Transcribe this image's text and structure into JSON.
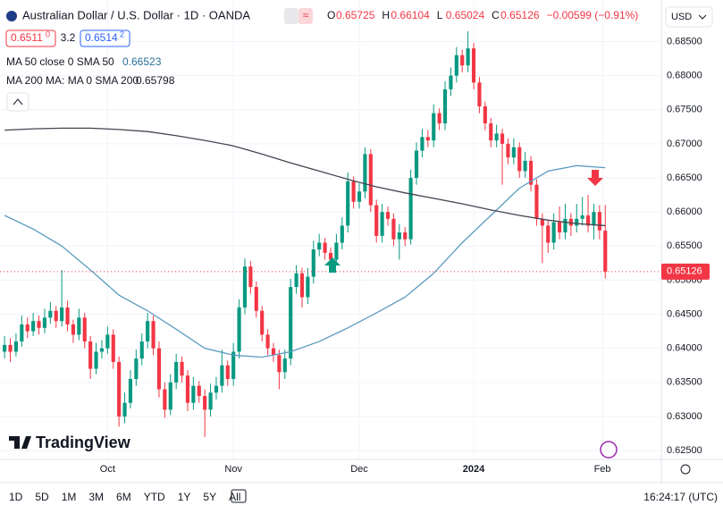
{
  "header": {
    "title": "Australian Dollar / U.S. Dollar · 1D · OANDA",
    "ohlc": [
      {
        "label": "O",
        "value": "0.65725"
      },
      {
        "label": "H",
        "value": "0.66104"
      },
      {
        "label": "L",
        "value": "0.65024"
      },
      {
        "label": "C",
        "value": "0.65126"
      }
    ],
    "change": "−0.00599 (−0.91%)",
    "bid": "0.6511",
    "bid_sup": "0",
    "spread": "3.2",
    "ask": "0.6514",
    "ask_sup": "2",
    "currency": "USD"
  },
  "indicators": [
    {
      "label": "MA 50 close 0 SMA 50",
      "value": "0.66523"
    },
    {
      "label": "MA 200 MA: MA 0 SMA 200",
      "value": "0.65798"
    }
  ],
  "logo": "TradingView",
  "toolbar": {
    "ranges": [
      "1D",
      "5D",
      "1M",
      "3M",
      "6M",
      "YTD",
      "1Y",
      "5Y",
      "All"
    ],
    "time": "16:24:17 (UTC)"
  },
  "chart_data": {
    "type": "candlestick",
    "up_color": "#089981",
    "down_color": "#f23645",
    "ohlc": [
      [
        0.6395,
        0.6418,
        0.6385,
        0.6405
      ],
      [
        0.6405,
        0.6415,
        0.638,
        0.6395
      ],
      [
        0.6395,
        0.6422,
        0.6388,
        0.641
      ],
      [
        0.641,
        0.6448,
        0.6402,
        0.6435
      ],
      [
        0.6435,
        0.6445,
        0.6415,
        0.6425
      ],
      [
        0.6425,
        0.6452,
        0.6418,
        0.644
      ],
      [
        0.644,
        0.6448,
        0.642,
        0.643
      ],
      [
        0.643,
        0.6458,
        0.6422,
        0.6445
      ],
      [
        0.6445,
        0.6468,
        0.6436,
        0.6455
      ],
      [
        0.6455,
        0.6462,
        0.643,
        0.644
      ],
      [
        0.644,
        0.6515,
        0.6432,
        0.646
      ],
      [
        0.646,
        0.647,
        0.6425,
        0.6435
      ],
      [
        0.6435,
        0.6442,
        0.6408,
        0.642
      ],
      [
        0.642,
        0.6458,
        0.6412,
        0.6445
      ],
      [
        0.6445,
        0.6452,
        0.64,
        0.641
      ],
      [
        0.641,
        0.6418,
        0.6355,
        0.637
      ],
      [
        0.637,
        0.6408,
        0.6362,
        0.6395
      ],
      [
        0.6395,
        0.6412,
        0.6385,
        0.64
      ],
      [
        0.64,
        0.6432,
        0.6392,
        0.642
      ],
      [
        0.642,
        0.6428,
        0.637,
        0.638
      ],
      [
        0.638,
        0.6388,
        0.6285,
        0.63
      ],
      [
        0.63,
        0.6335,
        0.629,
        0.632
      ],
      [
        0.632,
        0.6368,
        0.6312,
        0.6355
      ],
      [
        0.6355,
        0.6398,
        0.6345,
        0.6385
      ],
      [
        0.6385,
        0.6422,
        0.6375,
        0.641
      ],
      [
        0.641,
        0.6452,
        0.64,
        0.644
      ],
      [
        0.644,
        0.6448,
        0.639,
        0.64
      ],
      [
        0.64,
        0.641,
        0.6328,
        0.634
      ],
      [
        0.634,
        0.635,
        0.6298,
        0.631
      ],
      [
        0.631,
        0.6362,
        0.6302,
        0.635
      ],
      [
        0.635,
        0.6392,
        0.634,
        0.638
      ],
      [
        0.638,
        0.6388,
        0.635,
        0.636
      ],
      [
        0.636,
        0.6368,
        0.6308,
        0.632
      ],
      [
        0.632,
        0.6358,
        0.631,
        0.6345
      ],
      [
        0.6345,
        0.6352,
        0.632,
        0.633
      ],
      [
        0.633,
        0.634,
        0.627,
        0.631
      ],
      [
        0.631,
        0.6348,
        0.63,
        0.6335
      ],
      [
        0.6335,
        0.6358,
        0.6325,
        0.6345
      ],
      [
        0.6345,
        0.6398,
        0.6335,
        0.6375
      ],
      [
        0.6375,
        0.6382,
        0.6345,
        0.6355
      ],
      [
        0.6355,
        0.6408,
        0.6345,
        0.6395
      ],
      [
        0.6395,
        0.6472,
        0.6385,
        0.646
      ],
      [
        0.646,
        0.6532,
        0.645,
        0.652
      ],
      [
        0.652,
        0.6528,
        0.648,
        0.649
      ],
      [
        0.649,
        0.6498,
        0.6445,
        0.6455
      ],
      [
        0.6455,
        0.6462,
        0.641,
        0.642
      ],
      [
        0.642,
        0.6428,
        0.639,
        0.64
      ],
      [
        0.64,
        0.6408,
        0.638,
        0.639
      ],
      [
        0.639,
        0.6398,
        0.634,
        0.6365
      ],
      [
        0.6365,
        0.6398,
        0.6355,
        0.6385
      ],
      [
        0.6385,
        0.6502,
        0.6375,
        0.649
      ],
      [
        0.649,
        0.6522,
        0.648,
        0.651
      ],
      [
        0.651,
        0.6518,
        0.646,
        0.6475
      ],
      [
        0.6475,
        0.6518,
        0.6465,
        0.6505
      ],
      [
        0.6505,
        0.6558,
        0.6495,
        0.6545
      ],
      [
        0.6545,
        0.6568,
        0.6535,
        0.6555
      ],
      [
        0.6555,
        0.6562,
        0.653,
        0.654
      ],
      [
        0.654,
        0.6548,
        0.652,
        0.653
      ],
      [
        0.653,
        0.6568,
        0.6522,
        0.6555
      ],
      [
        0.6555,
        0.6592,
        0.6545,
        0.658
      ],
      [
        0.658,
        0.6658,
        0.657,
        0.6645
      ],
      [
        0.6645,
        0.6652,
        0.6605,
        0.6615
      ],
      [
        0.6615,
        0.6642,
        0.6605,
        0.663
      ],
      [
        0.663,
        0.6695,
        0.662,
        0.6685
      ],
      [
        0.6685,
        0.6692,
        0.66,
        0.661
      ],
      [
        0.661,
        0.6618,
        0.6555,
        0.6565
      ],
      [
        0.6565,
        0.6612,
        0.6555,
        0.66
      ],
      [
        0.66,
        0.6608,
        0.658,
        0.659
      ],
      [
        0.659,
        0.6598,
        0.655,
        0.656
      ],
      [
        0.656,
        0.6582,
        0.653,
        0.657
      ],
      [
        0.657,
        0.6578,
        0.655,
        0.656
      ],
      [
        0.656,
        0.6662,
        0.6552,
        0.665
      ],
      [
        0.665,
        0.6702,
        0.664,
        0.669
      ],
      [
        0.669,
        0.6722,
        0.668,
        0.671
      ],
      [
        0.671,
        0.672,
        0.6695,
        0.6705
      ],
      [
        0.6705,
        0.6758,
        0.6695,
        0.6745
      ],
      [
        0.6745,
        0.6752,
        0.672,
        0.673
      ],
      [
        0.673,
        0.6792,
        0.672,
        0.678
      ],
      [
        0.678,
        0.6812,
        0.677,
        0.68
      ],
      [
        0.68,
        0.6842,
        0.679,
        0.683
      ],
      [
        0.683,
        0.6838,
        0.6805,
        0.6815
      ],
      [
        0.6815,
        0.6865,
        0.6805,
        0.684
      ],
      [
        0.684,
        0.6848,
        0.678,
        0.679
      ],
      [
        0.679,
        0.6798,
        0.6745,
        0.6755
      ],
      [
        0.6755,
        0.6762,
        0.672,
        0.673
      ],
      [
        0.673,
        0.6738,
        0.6695,
        0.6705
      ],
      [
        0.6705,
        0.6728,
        0.6695,
        0.6715
      ],
      [
        0.6715,
        0.6722,
        0.664,
        0.67
      ],
      [
        0.67,
        0.6708,
        0.667,
        0.668
      ],
      [
        0.668,
        0.6708,
        0.667,
        0.6695
      ],
      [
        0.6695,
        0.6702,
        0.665,
        0.666
      ],
      [
        0.666,
        0.6688,
        0.665,
        0.6675
      ],
      [
        0.6675,
        0.6682,
        0.663,
        0.664
      ],
      [
        0.664,
        0.6648,
        0.658,
        0.659
      ],
      [
        0.659,
        0.6598,
        0.6525,
        0.658
      ],
      [
        0.658,
        0.6588,
        0.654,
        0.6555
      ],
      [
        0.6555,
        0.6598,
        0.6545,
        0.6585
      ],
      [
        0.6585,
        0.6608,
        0.656,
        0.657
      ],
      [
        0.657,
        0.6612,
        0.656,
        0.659
      ],
      [
        0.659,
        0.6598,
        0.6565,
        0.658
      ],
      [
        0.658,
        0.6612,
        0.657,
        0.659
      ],
      [
        0.659,
        0.6622,
        0.658,
        0.6595
      ],
      [
        0.6595,
        0.6625,
        0.657,
        0.658
      ],
      [
        0.658,
        0.6612,
        0.656,
        0.66
      ],
      [
        0.66,
        0.661,
        0.656,
        0.6573
      ],
      [
        0.65725,
        0.66104,
        0.65024,
        0.65126
      ]
    ],
    "series": [
      {
        "color": "#5b9bbf",
        "x": [
          0,
          5,
          10,
          15,
          20,
          25,
          30,
          35,
          40,
          45,
          50,
          55,
          60,
          65,
          70,
          75,
          80,
          85,
          90,
          95,
          100,
          105
        ],
        "values": [
          0.6595,
          0.6575,
          0.655,
          0.6515,
          0.6478,
          0.6455,
          0.6428,
          0.64,
          0.639,
          0.6387,
          0.6395,
          0.641,
          0.643,
          0.6452,
          0.6475,
          0.651,
          0.6555,
          0.6595,
          0.6635,
          0.666,
          0.6668,
          0.6665
        ]
      },
      {
        "color": "#434651",
        "x": [
          0,
          5,
          10,
          15,
          20,
          25,
          30,
          35,
          40,
          45,
          50,
          55,
          60,
          65,
          70,
          75,
          80,
          85,
          90,
          95,
          100,
          105
        ],
        "values": [
          0.672,
          0.6722,
          0.6723,
          0.6723,
          0.6721,
          0.6718,
          0.6712,
          0.6705,
          0.6697,
          0.6685,
          0.6672,
          0.666,
          0.6648,
          0.6637,
          0.6628,
          0.662,
          0.6612,
          0.6603,
          0.6595,
          0.6588,
          0.6583,
          0.658
        ]
      }
    ],
    "last_price": 0.65126,
    "xlim": [
      -0.8,
      114.8
    ],
    "xticks": [
      {
        "value": 18,
        "label": "Oct"
      },
      {
        "value": 40,
        "label": "Nov"
      },
      {
        "value": 62,
        "label": "Dec"
      },
      {
        "value": 82,
        "label": "2024"
      },
      {
        "value": 104.5,
        "label": "Feb"
      }
    ],
    "ylim": [
      0.6237,
      0.6911
    ],
    "yticks": [
      {
        "value": 0.625,
        "label": "0.62500"
      },
      {
        "value": 0.63,
        "label": "0.63000"
      },
      {
        "value": 0.635,
        "label": "0.63500"
      },
      {
        "value": 0.64,
        "label": "0.64000"
      },
      {
        "value": 0.645,
        "label": "0.64500"
      },
      {
        "value": 0.65,
        "label": "0.65000"
      },
      {
        "value": 0.655,
        "label": "0.65500"
      },
      {
        "value": 0.66,
        "label": "0.66000"
      },
      {
        "value": 0.665,
        "label": "0.66500"
      },
      {
        "value": 0.67,
        "label": "0.67000"
      },
      {
        "value": 0.675,
        "label": "0.67500"
      },
      {
        "value": 0.68,
        "label": "0.68000"
      },
      {
        "value": 0.685,
        "label": "0.68500"
      }
    ]
  }
}
